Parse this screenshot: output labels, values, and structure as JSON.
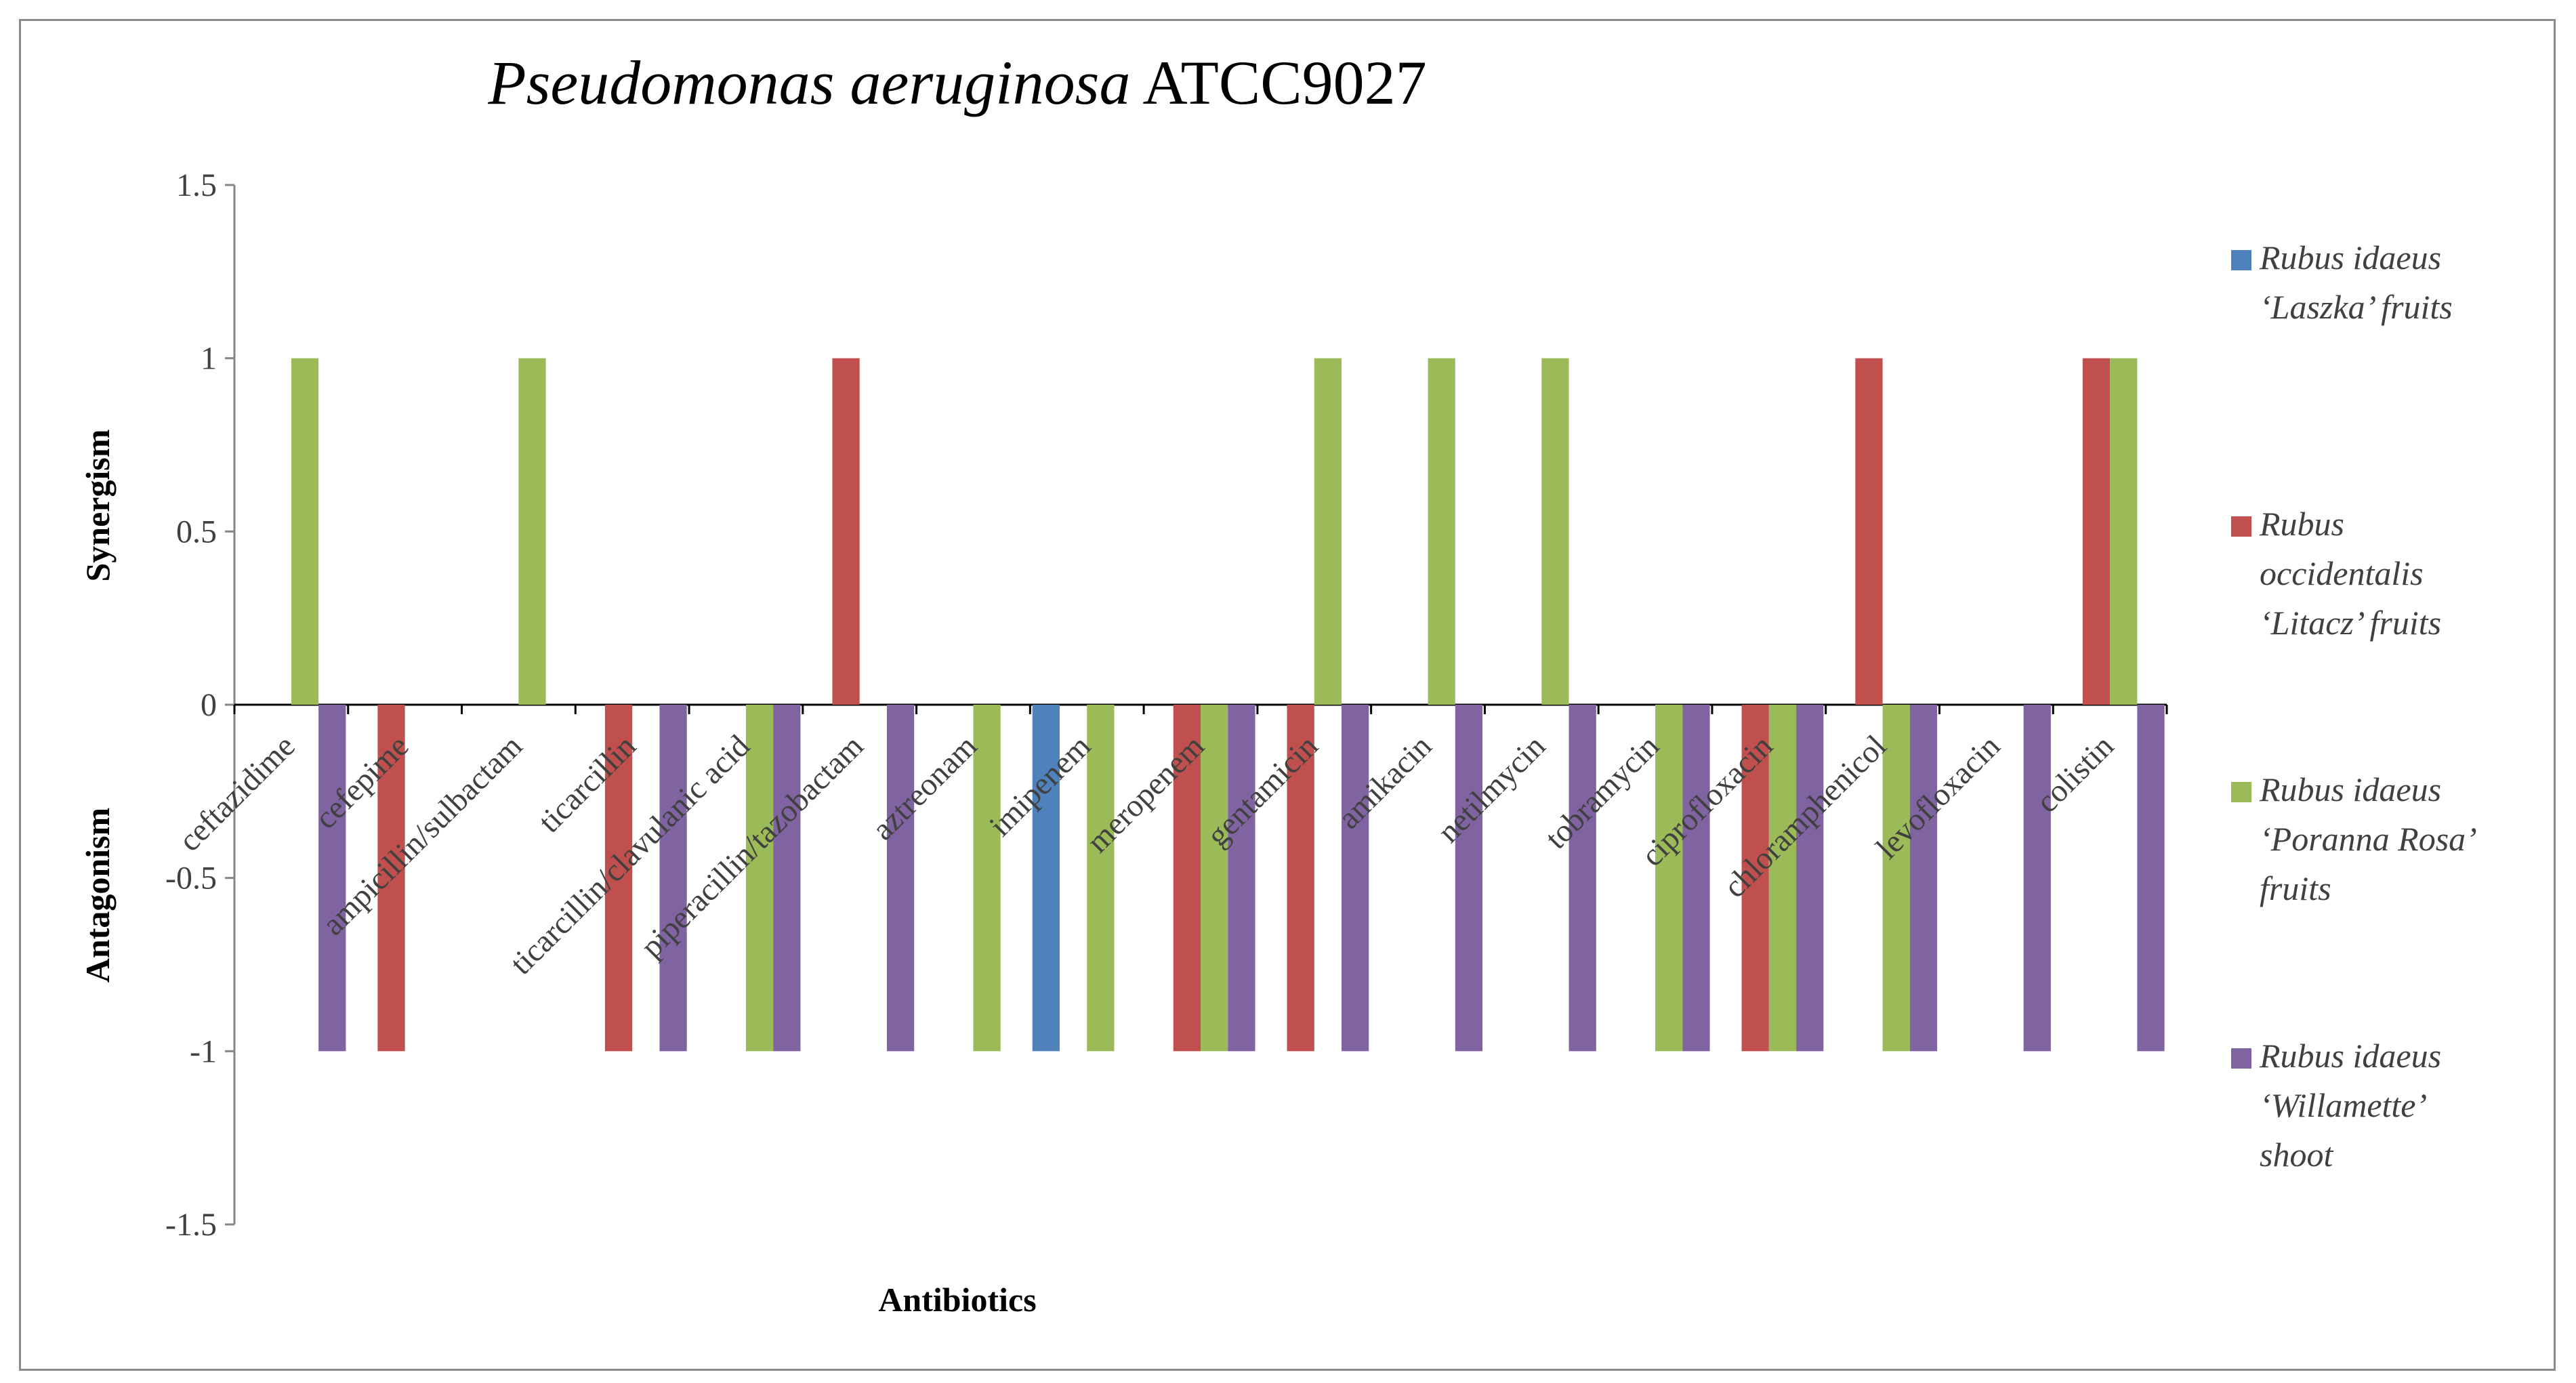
{
  "chart_data": {
    "type": "bar",
    "title": {
      "italic": "Pseudomonas aeruginosa",
      "plain": " ATCC9027"
    },
    "xlabel": "Antibiotics",
    "ylabel_upper": "Synergism",
    "ylabel_lower": "Antagonism",
    "ylim": [
      -1.5,
      1.5
    ],
    "yticks": [
      "1.5",
      "1",
      "0.5",
      "0",
      "-0.5",
      "-1",
      "-1.5"
    ],
    "ytick_values": [
      1.5,
      1,
      0.5,
      0,
      -0.5,
      -1,
      -1.5
    ],
    "grid": false,
    "legend_position": "right",
    "categories": [
      "ceftazidime",
      "cefepime",
      "ampicillin/sulbactam",
      "ticarcillin",
      "ticarcillin/clavulanic acid",
      "piperacillin/tazobactam",
      "aztreonam",
      "imipenem",
      "meropenem",
      "gentamicin",
      "amikacin",
      "netilmycin",
      "tobramycin",
      "ciprofloxacin",
      "chloramphenicol",
      "levofloxacin",
      "colistin"
    ],
    "series": [
      {
        "name": "Rubus idaeus 'Laszka' fruits",
        "legend_lines": [
          "Rubus idaeus",
          "‘Laszka’ fruits"
        ],
        "color": "#4f81bd",
        "values": [
          0,
          0,
          0,
          0,
          0,
          0,
          0,
          -1,
          0,
          0,
          0,
          0,
          0,
          0,
          0,
          0,
          0
        ]
      },
      {
        "name": "Rubus occidentalis 'Litacz' fruits",
        "legend_lines": [
          "Rubus",
          "occidentalis",
          "‘Litacz’ fruits"
        ],
        "color": "#c0504d",
        "values": [
          0,
          -1,
          0,
          -1,
          0,
          1,
          0,
          0,
          -1,
          -1,
          0,
          0,
          0,
          -1,
          1,
          0,
          1
        ]
      },
      {
        "name": "Rubus idaeus 'Poranna Rosa' fruits",
        "legend_lines": [
          "Rubus idaeus",
          "‘Poranna Rosa’",
          "fruits"
        ],
        "color": "#9bbb59",
        "values": [
          1,
          0,
          1,
          0,
          -1,
          0,
          -1,
          -1,
          -1,
          1,
          1,
          1,
          -1,
          -1,
          -1,
          0,
          1
        ]
      },
      {
        "name": "Rubus idaeus 'Willamette' shoot",
        "legend_lines": [
          "Rubus idaeus",
          "‘Willamette’",
          "shoot"
        ],
        "color": "#8064a2",
        "values": [
          -1,
          0,
          0,
          -1,
          -1,
          -1,
          0,
          0,
          -1,
          -1,
          -1,
          -1,
          -1,
          -1,
          -1,
          -1,
          -1
        ]
      }
    ]
  }
}
